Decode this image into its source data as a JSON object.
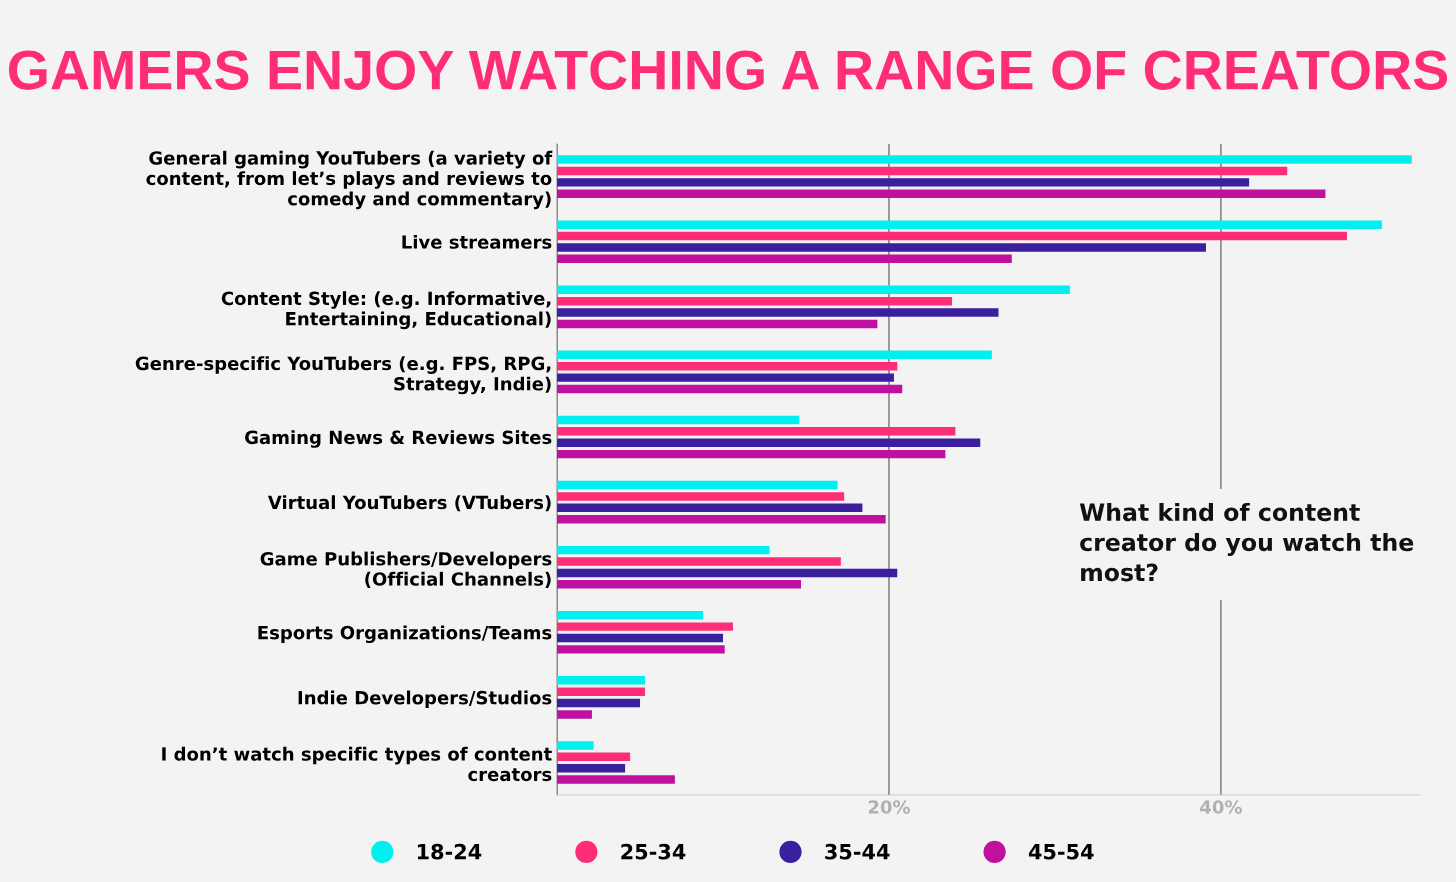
{
  "chart_data": {
    "type": "bar",
    "orientation": "horizontal",
    "title": "GAMERS ENJOY WATCHING A RANGE OF CREATORS",
    "categories": [
      "General gaming YouTubers (a variety of\ncontent, from let’s plays and reviews to\ncomedy and commentary)",
      "Live streamers",
      "Content Style: (e.g. Informative,\nEntertaining, Educational)",
      "Genre-specific YouTubers (e.g. FPS, RPG,\nStrategy, Indie)",
      "Gaming News & Reviews Sites",
      "Virtual YouTubers (VTubers)",
      "Game Publishers/Developers\n(Official Channels)",
      "Esports Organizations/Teams",
      "Indie Developers/Studios",
      "I don’t watch specific types of content\ncreators"
    ],
    "series": [
      {
        "name": "18-24",
        "color": "#00f0f0",
        "values": [
          51.5,
          49.7,
          30.9,
          26.2,
          14.6,
          16.9,
          12.8,
          8.8,
          5.3,
          2.2
        ]
      },
      {
        "name": "25-34",
        "color": "#ff2d78",
        "values": [
          44.0,
          47.6,
          23.8,
          20.5,
          24.0,
          17.3,
          17.1,
          10.6,
          5.3,
          4.4
        ]
      },
      {
        "name": "35-44",
        "color": "#3a1f9e",
        "values": [
          41.7,
          39.1,
          26.6,
          20.3,
          25.5,
          18.4,
          20.5,
          10.0,
          5.0,
          4.1
        ]
      },
      {
        "name": "45-54",
        "color": "#c0109e",
        "values": [
          46.3,
          27.4,
          19.3,
          20.8,
          23.4,
          19.8,
          14.7,
          10.1,
          2.1,
          7.1
        ]
      }
    ],
    "xlim": [
      0,
      52
    ],
    "xticks": [
      {
        "value": 0,
        "label": null
      },
      {
        "value": 20,
        "label": "20%"
      },
      {
        "value": 40,
        "label": "40%"
      }
    ],
    "grid": "x",
    "legend": "bottom",
    "tick_labels": "xy",
    "annotations": [
      "What kind of content\ncreator do you watch the\nmost?"
    ]
  }
}
